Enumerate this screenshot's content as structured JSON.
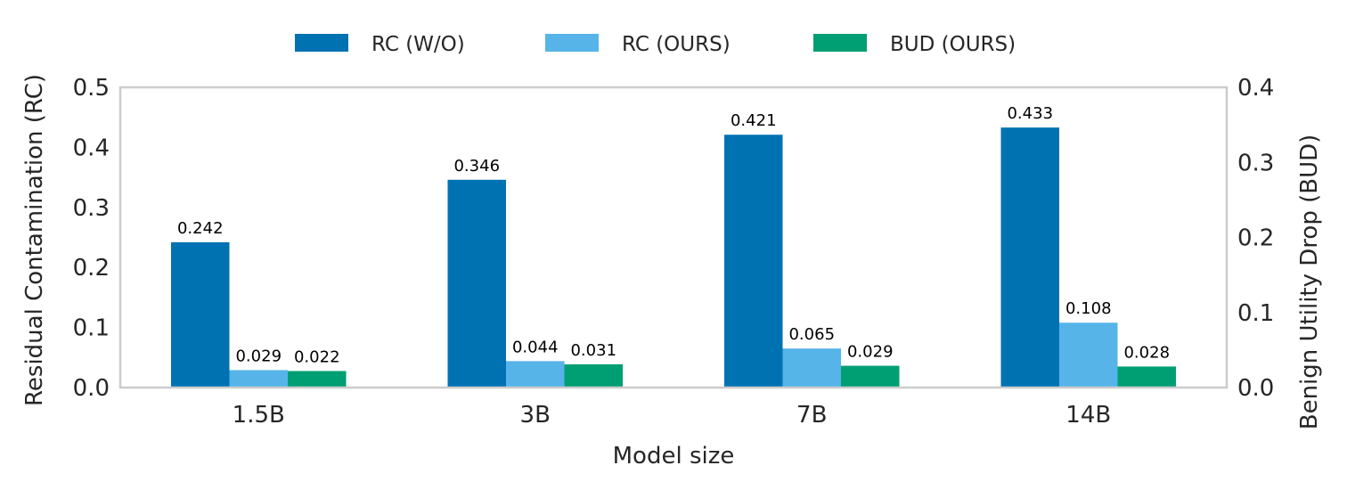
{
  "chart_data": {
    "type": "bar",
    "categories": [
      "1.5B",
      "3B",
      "7B",
      "14B"
    ],
    "series": [
      {
        "name": "RC (W/O)",
        "axis": "left",
        "color": "#0072b2",
        "values": [
          0.242,
          0.346,
          0.421,
          0.433
        ],
        "labels": [
          "0.242",
          "0.346",
          "0.421",
          "0.433"
        ]
      },
      {
        "name": "RC (OURS)",
        "axis": "left",
        "color": "#56b4e9",
        "values": [
          0.029,
          0.044,
          0.065,
          0.108
        ],
        "labels": [
          "0.029",
          "0.044",
          "0.065",
          "0.108"
        ]
      },
      {
        "name": "BUD (OURS)",
        "axis": "right",
        "color": "#009e73",
        "values": [
          0.022,
          0.031,
          0.029,
          0.028
        ],
        "labels": [
          "0.022",
          "0.031",
          "0.029",
          "0.028"
        ]
      }
    ],
    "xlabel": "Model size",
    "ylabel_left": "Residual Contamination (RC)",
    "ylabel_right": "Benign Utility Drop (BUD)",
    "ylim_left": [
      0,
      0.5
    ],
    "ylim_right": [
      0,
      0.4
    ],
    "yticks_left": [
      "0.0",
      "0.1",
      "0.2",
      "0.3",
      "0.4",
      "0.5"
    ],
    "yticks_right": [
      "0.0",
      "0.1",
      "0.2",
      "0.3",
      "0.4"
    ],
    "legend_position": "top-center",
    "grid": false,
    "frame_color": "#cccccc"
  }
}
